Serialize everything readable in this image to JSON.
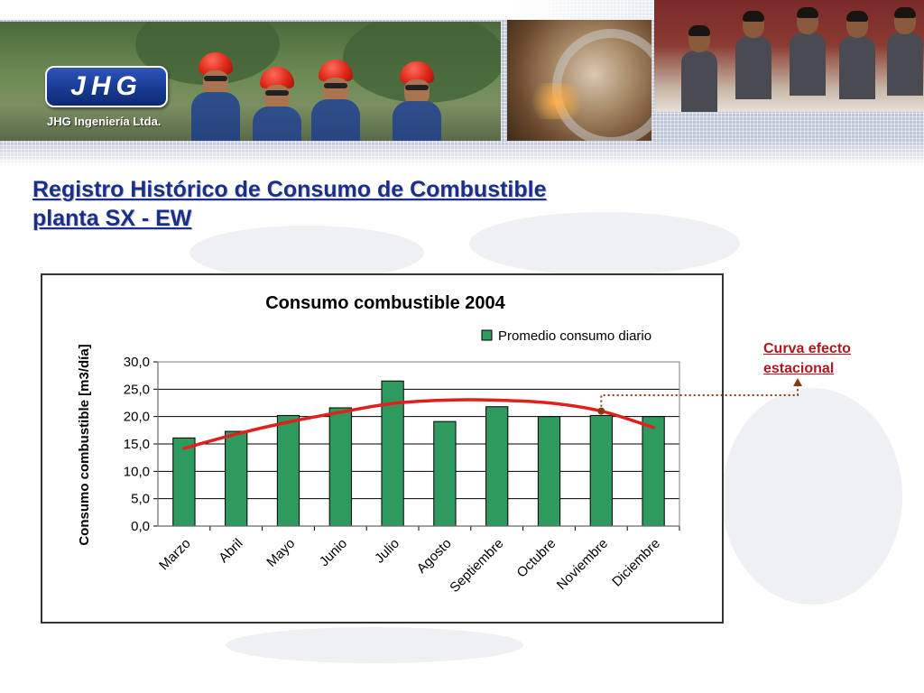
{
  "header": {
    "logo_text": "JHG",
    "company_name": "JHG Ingeniería Ltda."
  },
  "slide": {
    "title_line1": "Registro Histórico de Consumo de Combustible",
    "title_line2": "planta SX - EW"
  },
  "annotation": {
    "text_line1": "Curva efecto",
    "text_line2": "estacional"
  },
  "colors": {
    "title": "#1a2f8a",
    "bar_fill": "#2e9a5e",
    "trend_line": "#e0201c",
    "annotation": "#b0171f",
    "connector": "#8b3a0f"
  },
  "chart_data": {
    "type": "bar",
    "title": "Consumo combustible 2004",
    "ylabel": "Consumo combustible [m3/día]",
    "xlabel": "",
    "categories": [
      "Marzo",
      "Abril",
      "Mayo",
      "Junio",
      "Julio",
      "Agosto",
      "Septiembre",
      "Octubre",
      "Noviembre",
      "Diciembre"
    ],
    "series": [
      {
        "name": "Promedio consumo diario",
        "values": [
          16.1,
          17.3,
          20.2,
          21.6,
          26.5,
          19.1,
          21.8,
          20.0,
          20.2,
          20.0
        ]
      }
    ],
    "trend": {
      "values": [
        14.2,
        16.8,
        19.0,
        20.8,
        22.4,
        23.0,
        23.0,
        22.5,
        21.0,
        18.0
      ]
    },
    "ylim": [
      0,
      30
    ],
    "yticks": [
      "0,0",
      "5,0",
      "10,0",
      "15,0",
      "20,0",
      "25,0",
      "30,0"
    ],
    "grid": true,
    "legend": "top-right"
  }
}
